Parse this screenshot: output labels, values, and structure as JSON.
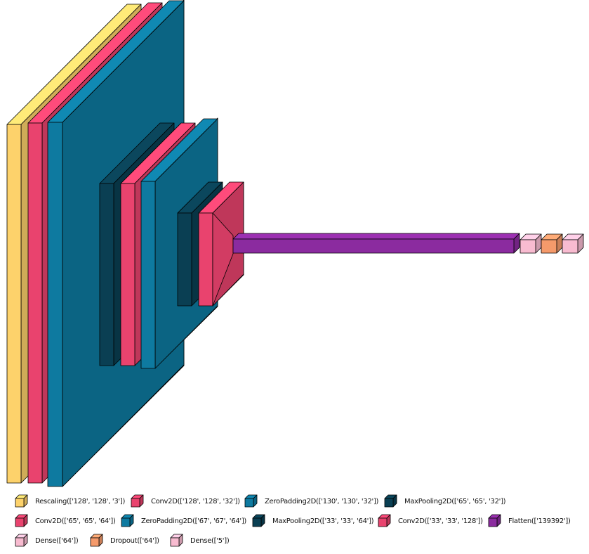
{
  "colors": {
    "rescaling": "#FDD26B",
    "conv2d": "#E9436E",
    "zeropadding2d": "#0E7AA0",
    "maxpooling2d": "#0A3F53",
    "flatten": "#8B2B9F",
    "dense": "#F8BBD0",
    "dropout": "#F59A6B"
  },
  "legend": [
    {
      "label": "Rescaling(['128', '128', '3'])",
      "color": "#FDD26B",
      "icon": "cube-icon"
    },
    {
      "label": "Conv2D(['128', '128', '32'])",
      "color": "#E9436E",
      "icon": "cube-icon"
    },
    {
      "label": "ZeroPadding2D(['130', '130', '32'])",
      "color": "#0E7AA0",
      "icon": "cube-icon"
    },
    {
      "label": "MaxPooling2D(['65', '65', '32'])",
      "color": "#0A3F53",
      "icon": "cube-icon"
    },
    {
      "label": "Conv2D(['65', '65', '64'])",
      "color": "#E9436E",
      "icon": "cube-icon"
    },
    {
      "label": "ZeroPadding2D(['67', '67', '64'])",
      "color": "#0E7AA0",
      "icon": "cube-icon"
    },
    {
      "label": "MaxPooling2D(['33', '33', '64'])",
      "color": "#0A3F53",
      "icon": "cube-icon"
    },
    {
      "label": "Conv2D(['33', '33', '128'])",
      "color": "#E9436E",
      "icon": "cube-icon"
    },
    {
      "label": "Flatten(['139392'])",
      "color": "#8B2B9F",
      "icon": "cube-icon"
    },
    {
      "label": "Dense(['64'])",
      "color": "#F8BBD0",
      "icon": "cube-icon"
    },
    {
      "label": "Dropout(['64'])",
      "color": "#F59A6B",
      "icon": "cube-icon"
    },
    {
      "label": "Dense(['5'])",
      "color": "#F8BBD0",
      "icon": "cube-icon"
    }
  ]
}
